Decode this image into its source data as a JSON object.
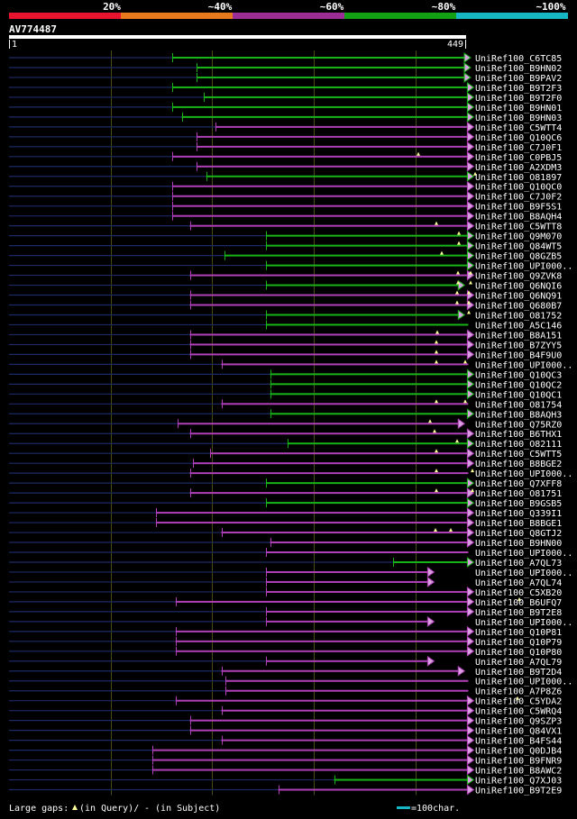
{
  "legend": {
    "ticks": [
      "20%",
      "~40%",
      "~60%",
      "~80%",
      "~100%"
    ],
    "colors": [
      "#e8132e",
      "#e87a1e",
      "#9b2e96",
      "#14a014",
      "#17b6c4"
    ]
  },
  "query": {
    "name": "AV774487",
    "start_label": "1",
    "end_label": "449"
  },
  "footer": {
    "gaps_prefix": "Large gaps:",
    "gaps_query": "(in Query)/",
    "gaps_subject": "- (in Subject)",
    "scale_label": "=100char."
  },
  "colors": {
    "purple": "#b040b8",
    "green": "#18b418",
    "dark": "#1c2a66",
    "guide": "#4a4a1a",
    "line_purple": "#a43aac"
  },
  "chart_data": {
    "type": "alignment-overview",
    "query_length": 449,
    "hits": [
      {
        "name": "UniRef100_C6TC85",
        "start": 161,
        "end": 449,
        "color": "green",
        "arrow": "end",
        "gaps": []
      },
      {
        "name": "UniRef100_B9HN02",
        "start": 185,
        "end": 449,
        "color": "green",
        "arrow": "end",
        "gaps": []
      },
      {
        "name": "UniRef100_B9PAV2",
        "start": 185,
        "end": 449,
        "color": "green",
        "arrow": "end",
        "gaps": []
      },
      {
        "name": "UniRef100_B9T2F3",
        "start": 161,
        "end": 452,
        "color": "green",
        "arrow": "end",
        "gaps": []
      },
      {
        "name": "UniRef100_B9T2F0",
        "start": 192,
        "end": 452,
        "color": "green",
        "arrow": "end",
        "gaps": []
      },
      {
        "name": "UniRef100_B9HN01",
        "start": 161,
        "end": 452,
        "color": "green",
        "arrow": "end",
        "gaps": []
      },
      {
        "name": "UniRef100_B9HN03",
        "start": 170,
        "end": 452,
        "color": "green",
        "arrow": "end",
        "gaps": []
      },
      {
        "name": "UniRef100_C5WTT4",
        "start": 203,
        "end": 452,
        "color": "purple",
        "arrow": "end",
        "gaps": []
      },
      {
        "name": "UniRef100_Q10QC6",
        "start": 185,
        "end": 452,
        "color": "purple",
        "arrow": "end",
        "gaps": []
      },
      {
        "name": "UniRef100_C7J0F1",
        "start": 185,
        "end": 452,
        "color": "purple",
        "arrow": "end",
        "gaps": []
      },
      {
        "name": "UniRef100_C0PBJ5",
        "start": 161,
        "end": 452,
        "color": "purple",
        "arrow": "end",
        "gaps": [
          464
        ]
      },
      {
        "name": "UniRef100_A2XDM3",
        "start": 185,
        "end": 452,
        "color": "purple",
        "arrow": "end",
        "gaps": []
      },
      {
        "name": "UniRef100_O81897",
        "start": 194,
        "end": 452,
        "color": "green",
        "arrow": "end",
        "gaps": [
          527
        ]
      },
      {
        "name": "UniRef100_Q10QC0",
        "start": 161,
        "end": 452,
        "color": "purple",
        "arrow": "end",
        "gaps": []
      },
      {
        "name": "UniRef100_C7J0F2",
        "start": 161,
        "end": 452,
        "color": "purple",
        "arrow": "end",
        "gaps": []
      },
      {
        "name": "UniRef100_B9F5S1",
        "start": 161,
        "end": 452,
        "color": "purple",
        "arrow": "end",
        "gaps": []
      },
      {
        "name": "UniRef100_B8AQH4",
        "start": 161,
        "end": 452,
        "color": "purple",
        "arrow": "end",
        "gaps": []
      },
      {
        "name": "UniRef100_C5WTT8",
        "start": 178,
        "end": 452,
        "color": "purple",
        "arrow": "end",
        "gaps": [
          484
        ]
      },
      {
        "name": "UniRef100_Q9M070",
        "start": 253,
        "end": 452,
        "color": "green",
        "arrow": "end",
        "gaps": [
          509
        ]
      },
      {
        "name": "UniRef100_Q84WT5",
        "start": 253,
        "end": 452,
        "color": "green",
        "arrow": "end",
        "gaps": [
          509
        ]
      },
      {
        "name": "UniRef100_Q8GZB5",
        "start": 212,
        "end": 452,
        "color": "green",
        "arrow": "end",
        "gaps": [
          490
        ]
      },
      {
        "name": "UniRef100_UPI000..",
        "start": 253,
        "end": 452,
        "color": "green",
        "arrow": "end",
        "gaps": []
      },
      {
        "name": "UniRef100_Q9ZVK8",
        "start": 178,
        "end": 452,
        "color": "purple",
        "arrow": "end",
        "gaps": [
          508,
          522
        ]
      },
      {
        "name": "UniRef100_Q6NQI6",
        "start": 253,
        "end": 443,
        "color": "green",
        "arrow": "end",
        "gaps": [
          508,
          522
        ]
      },
      {
        "name": "UniRef100_Q6NQ91",
        "start": 178,
        "end": 452,
        "color": "purple",
        "arrow": "end",
        "gaps": [
          507,
          520
        ]
      },
      {
        "name": "UniRef100_Q680B7",
        "start": 178,
        "end": 452,
        "color": "purple",
        "arrow": "end",
        "gaps": [
          507,
          520
        ]
      },
      {
        "name": "UniRef100_O81752",
        "start": 253,
        "end": 443,
        "color": "green",
        "arrow": "end",
        "gaps": [
          520
        ]
      },
      {
        "name": "UniRef100_A5C146",
        "start": 253,
        "end": 452,
        "color": "green",
        "arrow": "none",
        "gaps": []
      },
      {
        "name": "UniRef100_B8A151",
        "start": 178,
        "end": 452,
        "color": "purple",
        "arrow": "end",
        "gaps": [
          485
        ]
      },
      {
        "name": "UniRef100_B7ZYY5",
        "start": 178,
        "end": 452,
        "color": "purple",
        "arrow": "end",
        "gaps": [
          484
        ]
      },
      {
        "name": "UniRef100_B4F9U0",
        "start": 178,
        "end": 452,
        "color": "purple",
        "arrow": "end",
        "gaps": [
          484
        ]
      },
      {
        "name": "UniRef100_UPI000..",
        "start": 209,
        "end": 452,
        "color": "purple",
        "arrow": "none",
        "gaps": [
          484,
          516
        ]
      },
      {
        "name": "UniRef100_Q10QC3",
        "start": 257,
        "end": 452,
        "color": "green",
        "arrow": "end",
        "gaps": []
      },
      {
        "name": "UniRef100_Q10QC2",
        "start": 257,
        "end": 452,
        "color": "green",
        "arrow": "end",
        "gaps": []
      },
      {
        "name": "UniRef100_Q10QC1",
        "start": 257,
        "end": 452,
        "color": "green",
        "arrow": "end",
        "gaps": []
      },
      {
        "name": "UniRef100_O81754",
        "start": 209,
        "end": 452,
        "color": "purple",
        "arrow": "none",
        "gaps": [
          484,
          516
        ]
      },
      {
        "name": "UniRef100_B8AQH3",
        "start": 257,
        "end": 452,
        "color": "green",
        "arrow": "end",
        "gaps": []
      },
      {
        "name": "UniRef100_Q75RZ0",
        "start": 166,
        "end": 443,
        "color": "purple",
        "arrow": "end",
        "gaps": [
          477
        ]
      },
      {
        "name": "UniRef100_B6THX1",
        "start": 178,
        "end": 452,
        "color": "purple",
        "arrow": "end",
        "gaps": [
          482
        ]
      },
      {
        "name": "UniRef100_O82111",
        "start": 274,
        "end": 452,
        "color": "green",
        "arrow": "end",
        "gaps": [
          507
        ]
      },
      {
        "name": "UniRef100_C5WTT5",
        "start": 198,
        "end": 452,
        "color": "purple",
        "arrow": "end",
        "gaps": [
          484
        ]
      },
      {
        "name": "UniRef100_B8BGE2",
        "start": 181,
        "end": 452,
        "color": "purple",
        "arrow": "end",
        "gaps": []
      },
      {
        "name": "UniRef100_UPI000..",
        "start": 178,
        "end": 452,
        "color": "purple",
        "arrow": "none",
        "gaps": [
          484,
          524
        ]
      },
      {
        "name": "UniRef100_Q7XFF8",
        "start": 253,
        "end": 452,
        "color": "green",
        "arrow": "end",
        "gaps": []
      },
      {
        "name": "UniRef100_O81751",
        "start": 178,
        "end": 452,
        "color": "purple",
        "arrow": "end",
        "gaps": [
          484,
          524
        ]
      },
      {
        "name": "UniRef100_B9GSB5",
        "start": 253,
        "end": 452,
        "color": "green",
        "arrow": "end",
        "gaps": []
      },
      {
        "name": "UniRef100_Q339I1",
        "start": 145,
        "end": 452,
        "color": "purple",
        "arrow": "end",
        "gaps": []
      },
      {
        "name": "UniRef100_B8BGE1",
        "start": 145,
        "end": 452,
        "color": "purple",
        "arrow": "end",
        "gaps": []
      },
      {
        "name": "UniRef100_Q8GTJ2",
        "start": 209,
        "end": 452,
        "color": "purple",
        "arrow": "end",
        "gaps": [
          483,
          500
        ]
      },
      {
        "name": "UniRef100_B9HN00",
        "start": 257,
        "end": 452,
        "color": "purple",
        "arrow": "end",
        "gaps": []
      },
      {
        "name": "UniRef100_UPI000..",
        "start": 253,
        "end": 452,
        "color": "purple",
        "arrow": "none",
        "gaps": []
      },
      {
        "name": "UniRef100_A7QL73",
        "start": 378,
        "end": 452,
        "color": "green",
        "arrow": "end",
        "gaps": []
      },
      {
        "name": "UniRef100_UPI000..",
        "start": 253,
        "end": 413,
        "color": "purple",
        "arrow": "end",
        "gaps": []
      },
      {
        "name": "UniRef100_A7QL74",
        "start": 253,
        "end": 413,
        "color": "purple",
        "arrow": "end",
        "gaps": []
      },
      {
        "name": "UniRef100_C5XB20",
        "start": 253,
        "end": 452,
        "color": "purple",
        "arrow": "end",
        "gaps": []
      },
      {
        "name": "UniRef100_B6UFQ7",
        "start": 164,
        "end": 452,
        "color": "purple",
        "arrow": "end",
        "gaps": [
          576
        ]
      },
      {
        "name": "UniRef100_B9T2E8",
        "start": 253,
        "end": 452,
        "color": "purple",
        "arrow": "end",
        "gaps": []
      },
      {
        "name": "UniRef100_UPI000..",
        "start": 253,
        "end": 413,
        "color": "purple",
        "arrow": "end",
        "gaps": []
      },
      {
        "name": "UniRef100_Q10P81",
        "start": 164,
        "end": 452,
        "color": "purple",
        "arrow": "end",
        "gaps": []
      },
      {
        "name": "UniRef100_Q10P79",
        "start": 164,
        "end": 452,
        "color": "purple",
        "arrow": "end",
        "gaps": []
      },
      {
        "name": "UniRef100_Q10P80",
        "start": 164,
        "end": 452,
        "color": "purple",
        "arrow": "end",
        "gaps": []
      },
      {
        "name": "UniRef100_A7QL79",
        "start": 253,
        "end": 413,
        "color": "purple",
        "arrow": "end",
        "gaps": []
      },
      {
        "name": "UniRef100_B9T2D4",
        "start": 209,
        "end": 443,
        "color": "purple",
        "arrow": "end",
        "gaps": []
      },
      {
        "name": "UniRef100_UPI000..",
        "start": 213,
        "end": 452,
        "color": "purple",
        "arrow": "none",
        "gaps": []
      },
      {
        "name": "UniRef100_A7P8Z6",
        "start": 213,
        "end": 452,
        "color": "purple",
        "arrow": "none",
        "gaps": []
      },
      {
        "name": "UniRef100_C5YDA2",
        "start": 164,
        "end": 452,
        "color": "purple",
        "arrow": "end",
        "gaps": [
          574
        ]
      },
      {
        "name": "UniRef100_C5WRQ4",
        "start": 209,
        "end": 452,
        "color": "purple",
        "arrow": "end",
        "gaps": []
      },
      {
        "name": "UniRef100_Q9SZP3",
        "start": 178,
        "end": 452,
        "color": "purple",
        "arrow": "end",
        "gaps": []
      },
      {
        "name": "UniRef100_Q84VX1",
        "start": 178,
        "end": 452,
        "color": "purple",
        "arrow": "end",
        "gaps": []
      },
      {
        "name": "UniRef100_B4FS44",
        "start": 209,
        "end": 452,
        "color": "purple",
        "arrow": "end",
        "gaps": []
      },
      {
        "name": "UniRef100_Q0DJB4",
        "start": 141,
        "end": 452,
        "color": "purple",
        "arrow": "end",
        "gaps": []
      },
      {
        "name": "UniRef100_B9FNR9",
        "start": 141,
        "end": 452,
        "color": "purple",
        "arrow": "end",
        "gaps": []
      },
      {
        "name": "UniRef100_B8AWC2",
        "start": 141,
        "end": 452,
        "color": "purple",
        "arrow": "end",
        "gaps": []
      },
      {
        "name": "UniRef100_Q7XJ03",
        "start": 320,
        "end": 452,
        "color": "green",
        "arrow": "end",
        "gaps": []
      },
      {
        "name": "UniRef100_B9T2E9",
        "start": 265,
        "end": 452,
        "color": "purple",
        "arrow": "end",
        "gaps": []
      }
    ]
  }
}
